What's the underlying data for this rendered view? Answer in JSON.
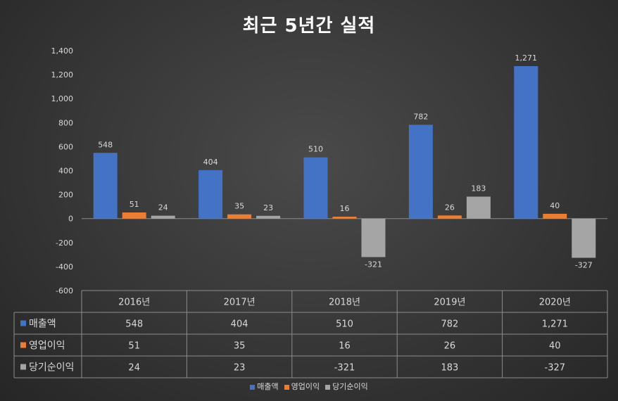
{
  "chart_data": {
    "type": "bar",
    "title": "최근 5년간 실적",
    "categories": [
      "2016년",
      "2017년",
      "2018년",
      "2019년",
      "2020년"
    ],
    "series": [
      {
        "name": "매출액",
        "values": [
          548,
          404,
          510,
          782,
          1271
        ],
        "labels": [
          "548",
          "404",
          "510",
          "782",
          "1,271"
        ],
        "color": "#4472c4"
      },
      {
        "name": "영업이익",
        "values": [
          51,
          35,
          16,
          26,
          40
        ],
        "labels": [
          "51",
          "35",
          "16",
          "26",
          "40"
        ],
        "color": "#ed7d31"
      },
      {
        "name": "당기순이익",
        "values": [
          24,
          23,
          -321,
          183,
          -327
        ],
        "labels": [
          "24",
          "23",
          "-321",
          "183",
          "-327"
        ],
        "color": "#a5a5a5"
      }
    ],
    "ylim": [
      -600,
      1400
    ],
    "yticks": [
      -600,
      -400,
      -200,
      0,
      200,
      400,
      600,
      800,
      1000,
      1200,
      1400
    ],
    "ytick_labels": [
      "-600",
      "-400",
      "-200",
      "0",
      "200",
      "400",
      "600",
      "800",
      "1,000",
      "1,200",
      "1,400"
    ],
    "grid": false,
    "legend": "bottom",
    "data_table": true
  }
}
